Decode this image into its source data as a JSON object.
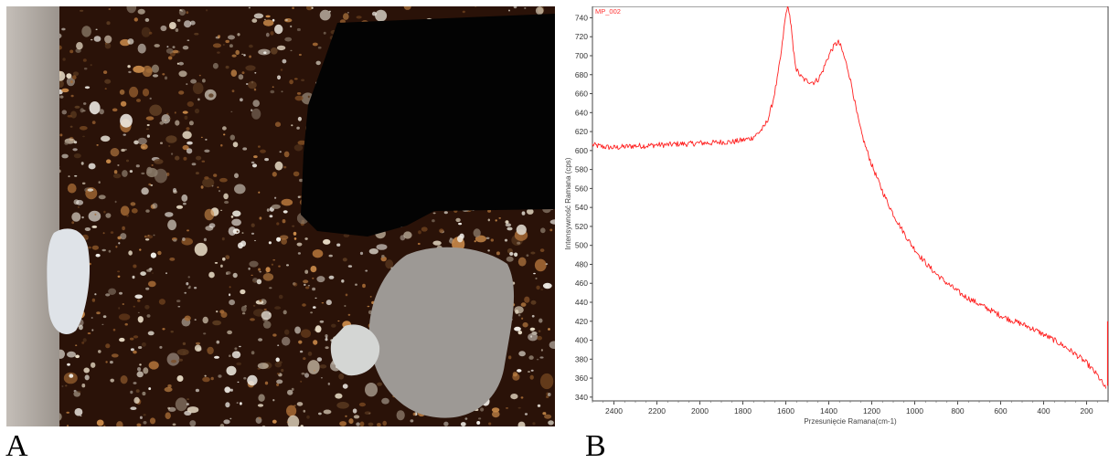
{
  "panels": {
    "a_label": "A",
    "b_label": "B"
  },
  "micrograph": {
    "icon": "thin-section-micrograph-image",
    "colors": {
      "matrix": "#2a1208",
      "grain": "#e8e4dc",
      "void": "#030303",
      "edge": "#b9b3ad"
    }
  },
  "chart_data": {
    "type": "line",
    "title": "",
    "series_label": "MP_002",
    "xlabel": "Przesunięcie Ramana(cm-1)",
    "ylabel": "Intensywność Ramana (cps)",
    "xlim": [
      2500,
      100
    ],
    "ylim": [
      336,
      752
    ],
    "x_reversed": true,
    "grid": false,
    "x_ticks": [
      2400,
      2200,
      2000,
      1800,
      1600,
      1400,
      1200,
      1000,
      800,
      600,
      400,
      200
    ],
    "y_ticks": [
      340,
      360,
      380,
      400,
      420,
      440,
      460,
      480,
      500,
      520,
      540,
      560,
      580,
      600,
      620,
      640,
      660,
      680,
      700,
      720,
      740
    ],
    "series": [
      {
        "name": "MP_002",
        "color": "#ff2020",
        "x": [
          2500,
          2450,
          2400,
          2350,
          2300,
          2250,
          2200,
          2150,
          2100,
          2050,
          2000,
          1950,
          1900,
          1850,
          1800,
          1760,
          1730,
          1700,
          1680,
          1660,
          1640,
          1620,
          1605,
          1595,
          1585,
          1575,
          1565,
          1550,
          1530,
          1510,
          1490,
          1470,
          1450,
          1430,
          1410,
          1390,
          1370,
          1355,
          1345,
          1330,
          1310,
          1290,
          1270,
          1250,
          1230,
          1200,
          1170,
          1140,
          1100,
          1060,
          1020,
          980,
          940,
          900,
          860,
          820,
          780,
          740,
          700,
          650,
          600,
          550,
          500,
          450,
          400,
          350,
          300,
          250,
          200,
          150,
          110
        ],
        "y": [
          606,
          604,
          603,
          604,
          605,
          605,
          606,
          606,
          607,
          607,
          608,
          608,
          609,
          609,
          611,
          613,
          618,
          625,
          635,
          652,
          675,
          705,
          735,
          750,
          748,
          730,
          705,
          685,
          678,
          674,
          673,
          672,
          675,
          683,
          695,
          705,
          712,
          714,
          710,
          700,
          685,
          665,
          640,
          620,
          605,
          585,
          568,
          552,
          533,
          517,
          502,
          490,
          479,
          470,
          462,
          455,
          448,
          443,
          438,
          432,
          426,
          421,
          417,
          412,
          406,
          400,
          393,
          385,
          376,
          363,
          349
        ]
      }
    ]
  }
}
